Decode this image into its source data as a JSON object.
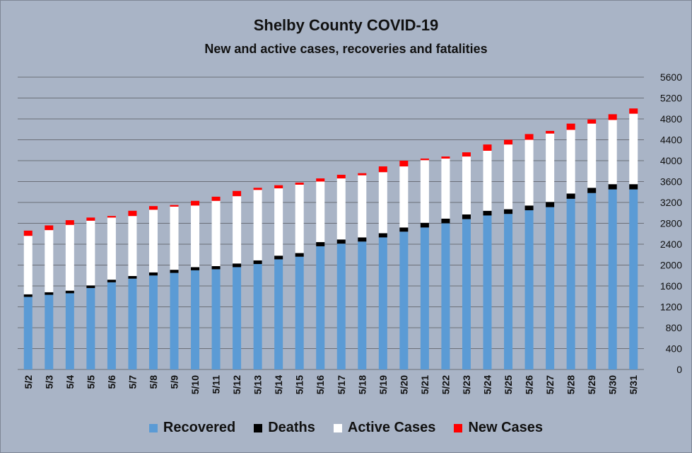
{
  "chart_data": {
    "type": "bar",
    "stacked": true,
    "title": "Shelby County COVID-19",
    "subtitle": "New and active cases, recoveries and fatalities",
    "categories": [
      "5/2",
      "5/3",
      "5/4",
      "5/5",
      "5/6",
      "5/7",
      "5/8",
      "5/9",
      "5/10",
      "5/11",
      "5/12",
      "5/13",
      "5/14",
      "5/15",
      "5/16",
      "5/17",
      "5/18",
      "5/19",
      "5/20",
      "5/21",
      "5/22",
      "5/23",
      "5/24",
      "5/25",
      "5/26",
      "5/27",
      "5/28",
      "5/29",
      "5/30",
      "5/31"
    ],
    "series": [
      {
        "name": "Recovered",
        "color": "#5b9bd5",
        "values": [
          1390,
          1430,
          1460,
          1560,
          1670,
          1740,
          1800,
          1850,
          1900,
          1920,
          1960,
          2020,
          2110,
          2160,
          2360,
          2410,
          2450,
          2530,
          2640,
          2720,
          2800,
          2880,
          2950,
          2980,
          3050,
          3110,
          3270,
          3380,
          3450,
          3450
        ]
      },
      {
        "name": "Deaths",
        "color": "#000000",
        "values": [
          50,
          50,
          50,
          50,
          50,
          50,
          60,
          60,
          60,
          60,
          70,
          70,
          70,
          70,
          80,
          80,
          80,
          80,
          80,
          90,
          90,
          90,
          90,
          90,
          90,
          100,
          100,
          100,
          100,
          100
        ]
      },
      {
        "name": "Active Cases",
        "color": "#ffffff",
        "values": [
          1120,
          1190,
          1260,
          1240,
          1190,
          1150,
          1200,
          1210,
          1180,
          1250,
          1290,
          1350,
          1290,
          1310,
          1160,
          1170,
          1190,
          1170,
          1170,
          1200,
          1150,
          1110,
          1150,
          1240,
          1260,
          1310,
          1220,
          1230,
          1230,
          1350
        ]
      },
      {
        "name": "New Cases",
        "color": "#ff0000",
        "values": [
          100,
          90,
          90,
          60,
          30,
          100,
          70,
          30,
          90,
          80,
          100,
          40,
          60,
          40,
          60,
          70,
          40,
          110,
          110,
          30,
          40,
          80,
          120,
          90,
          110,
          50,
          120,
          80,
          110,
          100
        ]
      }
    ],
    "yticks": [
      0,
      400,
      800,
      1200,
      1600,
      2000,
      2400,
      2800,
      3200,
      3600,
      4000,
      4400,
      4800,
      5200,
      5600
    ],
    "ylim": [
      0,
      5600
    ],
    "y_axis_side": "right",
    "grid": true,
    "legend_position": "bottom"
  }
}
